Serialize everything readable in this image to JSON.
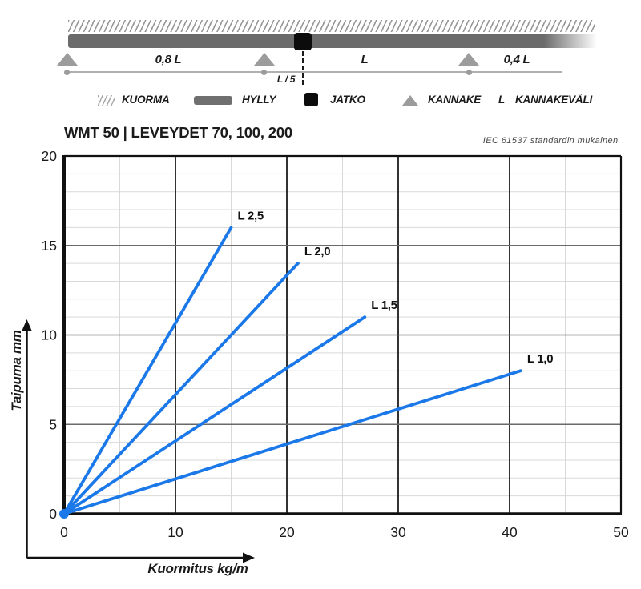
{
  "header": {
    "title": "WMT 50 | LEVEYDET 70, 100, 200",
    "standard_note": "IEC 61537 standardin mukainen."
  },
  "diagram": {
    "span_label_1": "0,8 L",
    "span_label_2": "L",
    "span_label_3": "0,4 L",
    "joint_offset_label": "L / 5"
  },
  "legend": {
    "items": [
      {
        "icon": "load-hatch-icon",
        "label": "KUORMA"
      },
      {
        "icon": "shelf-bar-icon",
        "label": "HYLLY"
      },
      {
        "icon": "joint-square-icon",
        "label": "JATKO"
      },
      {
        "icon": "support-triangle-icon",
        "label": "KANNAKE"
      },
      {
        "icon": "letter-L-symbol",
        "symbol": "L",
        "label": "KANNAKEVÄLI"
      }
    ]
  },
  "colors": {
    "line_blue": "#1b78e8",
    "shelf_gray": "#6b6b6b",
    "support_gray": "#9c9c9c",
    "joint_black": "#0c0c0c"
  },
  "chart_data": {
    "type": "line",
    "title": "",
    "xlabel": "Kuormitus kg/m",
    "ylabel": "Taipuma mm",
    "xlim": [
      0,
      50
    ],
    "ylim": [
      0,
      20
    ],
    "x_major_ticks": [
      0,
      10,
      20,
      30,
      40,
      50
    ],
    "y_major_ticks": [
      0,
      5,
      10,
      15,
      20
    ],
    "x_minor_step": 5,
    "y_minor_step": 1,
    "grid": true,
    "legend_position": "inline-labels",
    "line_color": "#1b78e8",
    "series": [
      {
        "name": "L 2,5",
        "x": [
          0,
          15
        ],
        "y": [
          0,
          16
        ]
      },
      {
        "name": "L 2,0",
        "x": [
          0,
          21
        ],
        "y": [
          0,
          14
        ]
      },
      {
        "name": "L 1,5",
        "x": [
          0,
          27
        ],
        "y": [
          0,
          11
        ]
      },
      {
        "name": "L 1,0",
        "x": [
          0,
          41
        ],
        "y": [
          0,
          8
        ]
      }
    ]
  }
}
